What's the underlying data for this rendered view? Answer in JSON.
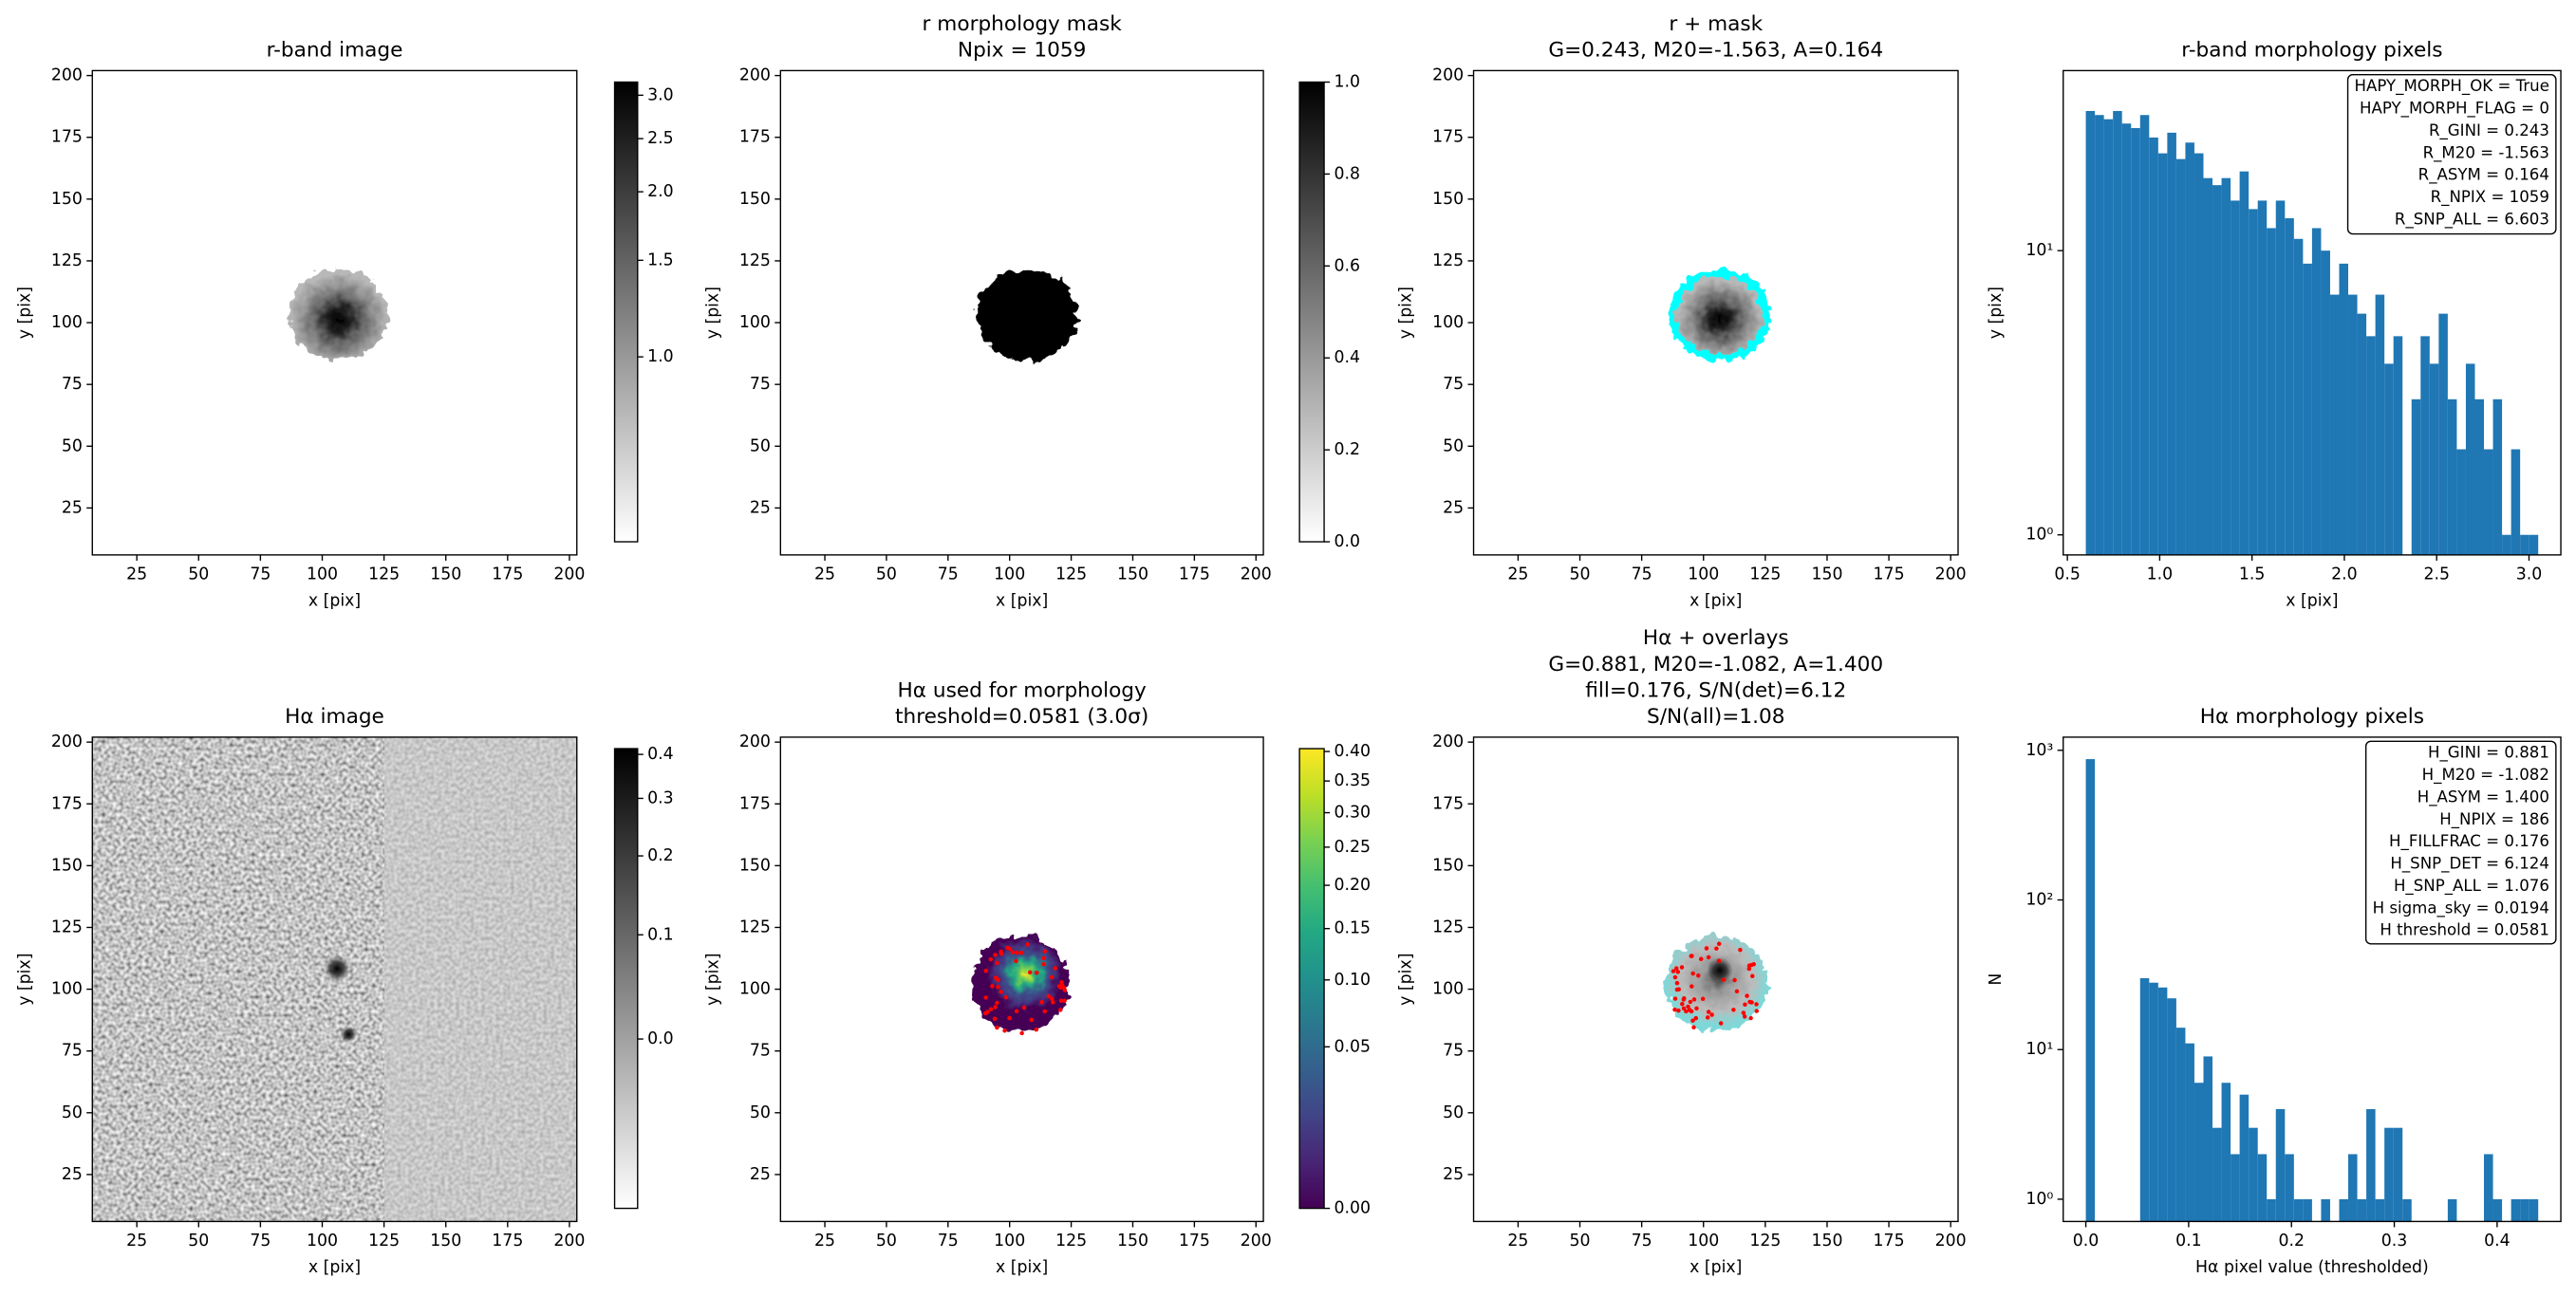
{
  "chart_data": [
    {
      "type": "image",
      "title": [
        "r-band image"
      ],
      "xlabel": "x [pix]",
      "ylabel": "y [pix]",
      "xlim": [
        7,
        203
      ],
      "ylim": [
        6,
        202
      ],
      "xticks": [
        25,
        50,
        75,
        100,
        125,
        150,
        175,
        200
      ],
      "yticks": [
        25,
        50,
        75,
        100,
        125,
        150,
        175,
        200
      ],
      "colorbar": {
        "cmap": "gray_r",
        "scale": "log",
        "lim": [
          0.46,
          3.17
        ],
        "ticks": [
          {
            "value": 1,
            "label": "1.0"
          },
          1.5,
          {
            "value": 2,
            "label": "2.0"
          },
          2.5,
          {
            "value": 3,
            "label": "3.0"
          }
        ]
      }
    },
    {
      "type": "image",
      "title": [
        "r morphology mask",
        "Npix = 1059"
      ],
      "xlabel": "x [pix]",
      "ylabel": "y [pix]",
      "xlim": [
        7,
        203
      ],
      "ylim": [
        6,
        202
      ],
      "xticks": [
        25,
        50,
        75,
        100,
        125,
        150,
        175,
        200
      ],
      "yticks": [
        25,
        50,
        75,
        100,
        125,
        150,
        175,
        200
      ],
      "colorbar": {
        "cmap": "gray_r",
        "scale": "linear",
        "lim": [
          0,
          1
        ],
        "ticks": [
          {
            "value": 0,
            "label": "0.0"
          },
          0.2,
          0.4,
          0.6,
          0.8,
          {
            "value": 1,
            "label": "1.0"
          }
        ]
      }
    },
    {
      "type": "image",
      "title": [
        "r + mask",
        "G=0.243, M20=-1.563, A=0.164"
      ],
      "xlabel": "x [pix]",
      "ylabel": "y [pix]",
      "xlim": [
        7,
        203
      ],
      "ylim": [
        6,
        202
      ],
      "xticks": [
        25,
        50,
        75,
        100,
        125,
        150,
        175,
        200
      ],
      "yticks": [
        25,
        50,
        75,
        100,
        125,
        150,
        175,
        200
      ]
    },
    {
      "type": "histogram",
      "title": [
        "r-band morphology pixels"
      ],
      "xlabel": "x [pix]",
      "ylabel": "y [pix]",
      "color": "#1f77b4",
      "yscale": "log",
      "bins": [
        0.6,
        0.649,
        0.698,
        0.747,
        0.796,
        0.845,
        0.894,
        0.943,
        0.992,
        1.041,
        1.09,
        1.139,
        1.188,
        1.237,
        1.286,
        1.335,
        1.384,
        1.433,
        1.482,
        1.531,
        1.58,
        1.629,
        1.678,
        1.727,
        1.776,
        1.825,
        1.874,
        1.923,
        1.972,
        2.021,
        2.07,
        2.119,
        2.168,
        2.217,
        2.266,
        2.315,
        2.364,
        2.413,
        2.462,
        2.511,
        2.56,
        2.609,
        2.658,
        2.707,
        2.756,
        2.805,
        2.854,
        2.903,
        2.952,
        3.001,
        3.05
      ],
      "values": [
        31,
        30,
        29,
        31,
        28,
        27,
        30,
        25,
        22,
        26,
        21,
        24,
        22,
        18,
        17,
        18,
        15,
        19,
        14,
        15,
        12,
        15,
        13,
        11,
        9,
        12,
        10,
        7,
        9,
        7,
        6,
        5,
        7,
        4,
        5,
        0,
        3,
        5,
        4,
        6,
        3,
        2,
        4,
        3,
        2,
        3,
        1,
        2,
        1,
        1
      ],
      "xlim": [
        0.4775,
        3.1725
      ],
      "ylim": [
        0.85,
        43
      ],
      "xticks": [
        0.5,
        {
          "value": 1,
          "label": "1.0"
        },
        1.5,
        {
          "value": 2,
          "label": "2.0"
        },
        2.5,
        {
          "value": 3,
          "label": "3.0"
        }
      ],
      "yticks": [
        {
          "value": 1,
          "label": "10⁰"
        },
        {
          "value": 10,
          "label": "10¹"
        }
      ],
      "annotation_lines": [
        "HAPY_MORPH_OK = True",
        "HAPY_MORPH_FLAG = 0",
        "R_GINI = 0.243",
        "R_M20 = -1.563",
        "R_ASYM = 0.164",
        "R_NPIX = 1059",
        "R_SNP_ALL = 6.603"
      ]
    },
    {
      "type": "image",
      "title": [
        "Hα image"
      ],
      "xlabel": "x [pix]",
      "ylabel": "y [pix]",
      "xlim": [
        7,
        203
      ],
      "ylim": [
        6,
        202
      ],
      "xticks": [
        25,
        50,
        75,
        100,
        125,
        150,
        175,
        200
      ],
      "yticks": [
        25,
        50,
        75,
        100,
        125,
        150,
        175,
        200
      ],
      "colorbar": {
        "cmap": "gray_r",
        "scale": "asinh",
        "lim": [
          -0.18,
          0.415
        ],
        "ticks": [
          {
            "value": 0,
            "label": "0.0"
          },
          0.1,
          0.2,
          0.3,
          0.4
        ]
      }
    },
    {
      "type": "image",
      "title": [
        "Hα used for morphology",
        "threshold=0.0581 (3.0σ)"
      ],
      "xlabel": "x [pix]",
      "ylabel": "y [pix]",
      "xlim": [
        7,
        203
      ],
      "ylim": [
        6,
        202
      ],
      "xticks": [
        25,
        50,
        75,
        100,
        125,
        150,
        175,
        200
      ],
      "yticks": [
        25,
        50,
        75,
        100,
        125,
        150,
        175,
        200
      ],
      "colorbar": {
        "cmap": "viridis",
        "scale": "sqrt",
        "lim": [
          0,
          0.405
        ],
        "ticks": [
          {
            "value": 0,
            "label": "0.00"
          },
          0.05,
          {
            "value": 0.1,
            "label": "0.10"
          },
          0.15,
          {
            "value": 0.2,
            "label": "0.20"
          },
          0.25,
          {
            "value": 0.3,
            "label": "0.30"
          },
          0.35,
          {
            "value": 0.4,
            "label": "0.40"
          }
        ]
      }
    },
    {
      "type": "image",
      "title": [
        "Hα + overlays",
        "G=0.881, M20=-1.082, A=1.400",
        "fill=0.176, S/N(det)=6.12",
        "S/N(all)=1.08"
      ],
      "xlabel": "x [pix]",
      "ylabel": "y [pix]",
      "xlim": [
        7,
        203
      ],
      "ylim": [
        6,
        202
      ],
      "xticks": [
        25,
        50,
        75,
        100,
        125,
        150,
        175,
        200
      ],
      "yticks": [
        25,
        50,
        75,
        100,
        125,
        150,
        175,
        200
      ]
    },
    {
      "type": "histogram",
      "title": [
        "Hα morphology pixels"
      ],
      "xlabel": "Hα pixel value (thresholded)",
      "ylabel": "N",
      "color": "#1f77b4",
      "yscale": "log",
      "bins": [
        0,
        0.0088,
        0.0176,
        0.0264,
        0.0352,
        0.044,
        0.0528,
        0.0616,
        0.0704,
        0.0792,
        0.088,
        0.0968,
        0.1056,
        0.1144,
        0.1232,
        0.132,
        0.1408,
        0.1496,
        0.1584,
        0.1672,
        0.176,
        0.1848,
        0.1936,
        0.2024,
        0.2112,
        0.22,
        0.2288,
        0.2376,
        0.2464,
        0.2552,
        0.264,
        0.2728,
        0.2816,
        0.2904,
        0.2992,
        0.308,
        0.3168,
        0.3256,
        0.3344,
        0.3432,
        0.352,
        0.3608,
        0.3696,
        0.3784,
        0.3872,
        0.396,
        0.4048,
        0.4136,
        0.4224,
        0.4312,
        0.44
      ],
      "values": [
        873,
        0,
        0,
        0,
        0,
        0,
        30,
        28,
        26,
        22,
        14,
        11,
        6,
        9,
        3,
        6,
        2,
        5,
        3,
        2,
        1,
        4,
        2,
        1,
        1,
        0,
        1,
        0,
        1,
        2,
        1,
        4,
        1,
        3,
        3,
        1,
        0,
        0,
        0,
        0,
        1,
        0,
        0,
        0,
        2,
        1,
        0,
        1,
        1,
        1
      ],
      "xlim": [
        -0.022,
        0.462
      ],
      "ylim": [
        0.71,
        1224
      ],
      "xticks": [
        {
          "value": 0,
          "label": "0.0"
        },
        0.1,
        0.2,
        0.3,
        0.4
      ],
      "yticks": [
        {
          "value": 1,
          "label": "10⁰"
        },
        {
          "value": 10,
          "label": "10¹"
        },
        {
          "value": 100,
          "label": "10²"
        },
        {
          "value": 1000,
          "label": "10³"
        }
      ],
      "annotation_lines": [
        "H_GINI = 0.881",
        "H_M20 = -1.082",
        "H_ASYM = 1.400",
        "H_NPIX = 186",
        "H_FILLFRAC = 0.176",
        "H_SNP_DET = 6.124",
        "H_SNP_ALL = 1.076",
        "H sigma_sky = 0.0194",
        "H threshold = 0.0581"
      ]
    }
  ]
}
